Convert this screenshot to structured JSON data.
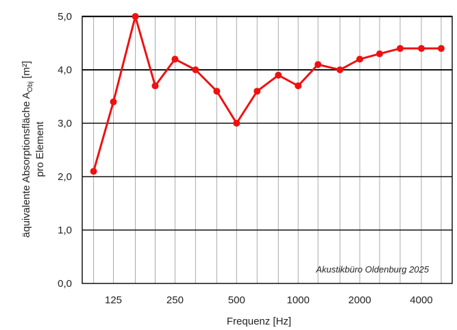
{
  "chart_data": {
    "type": "line",
    "xscale": "log",
    "x": [
      100,
      125,
      160,
      200,
      250,
      315,
      400,
      500,
      630,
      800,
      1000,
      1250,
      1600,
      2000,
      2500,
      3150,
      4000,
      5000
    ],
    "series": [
      {
        "values": [
          2.1,
          3.4,
          5.0,
          3.7,
          4.2,
          4.0,
          3.6,
          3.0,
          3.6,
          3.9,
          3.7,
          4.1,
          4.0,
          4.2,
          4.3,
          4.4,
          4.4,
          4.4
        ],
        "color": "#ee1111"
      }
    ],
    "xlabel": "Frequenz [Hz]",
    "ylabel_line1": "äquivalente Absorptionsfläche A",
    "ylabel_sub": "Obj",
    "ylabel_unit": " [m²]",
    "ylabel_line2": "pro Element",
    "ylim": [
      0,
      5
    ],
    "yticks": [
      "0,0",
      "1,0",
      "2,0",
      "3,0",
      "4,0",
      "5,0"
    ],
    "xtick_values": [
      125,
      250,
      500,
      1000,
      2000,
      4000
    ],
    "xtick_labels": [
      "125",
      "250",
      "500",
      "1000",
      "2000",
      "4000"
    ],
    "grid": true,
    "annotation": "Akustikbüro Oldenburg 2025"
  }
}
